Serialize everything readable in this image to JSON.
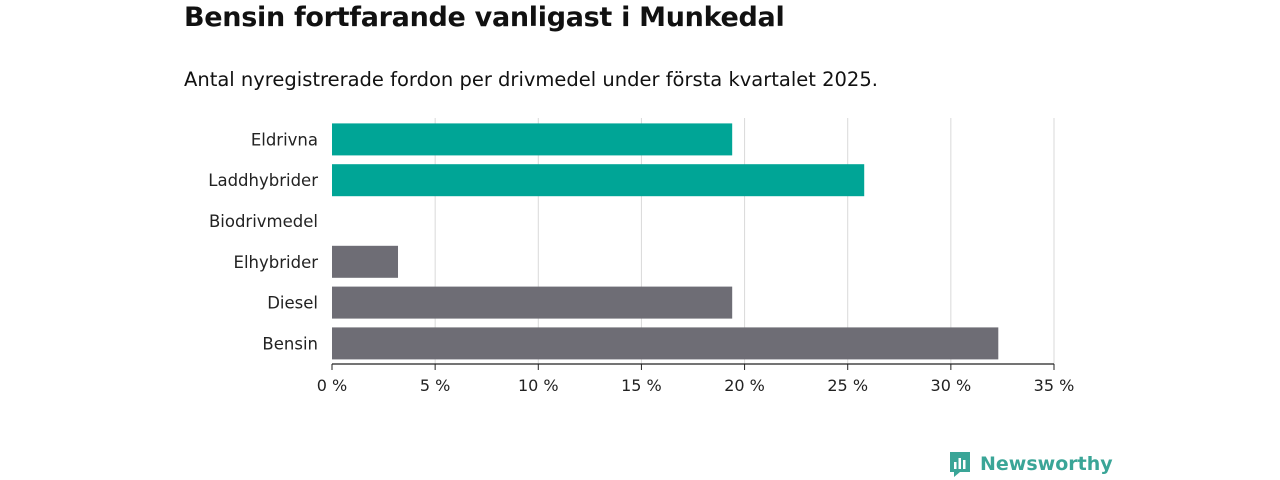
{
  "title": "Bensin fortfarande vanligast i Munkedal",
  "subtitle": "Antal nyregistrerade fordon per drivmedel under första kvartalet 2025.",
  "brand": {
    "name": "Newsworthy",
    "icon": "newsworthy-logo-icon"
  },
  "colors": {
    "electric": "#00a596",
    "other": "#6e6d75",
    "grid": "#d9d9d9",
    "axis": "#222222"
  },
  "chart_data": {
    "type": "bar",
    "orientation": "horizontal",
    "categories": [
      "Eldrivna",
      "Laddhybrider",
      "Biodrivmedel",
      "Elhybrider",
      "Diesel",
      "Bensin"
    ],
    "values": [
      19.4,
      25.8,
      0,
      3.2,
      19.4,
      32.3
    ],
    "unit": "%",
    "xlim": [
      0,
      35
    ],
    "ticks": [
      0,
      5,
      10,
      15,
      20,
      25,
      30,
      35
    ],
    "tick_labels": [
      "0 %",
      "5 %",
      "10 %",
      "15 %",
      "20 %",
      "25 %",
      "30 %",
      "35 %"
    ],
    "bar_colors": [
      "#00a596",
      "#00a596",
      "#6e6d75",
      "#6e6d75",
      "#6e6d75",
      "#6e6d75"
    ],
    "grid": true
  }
}
